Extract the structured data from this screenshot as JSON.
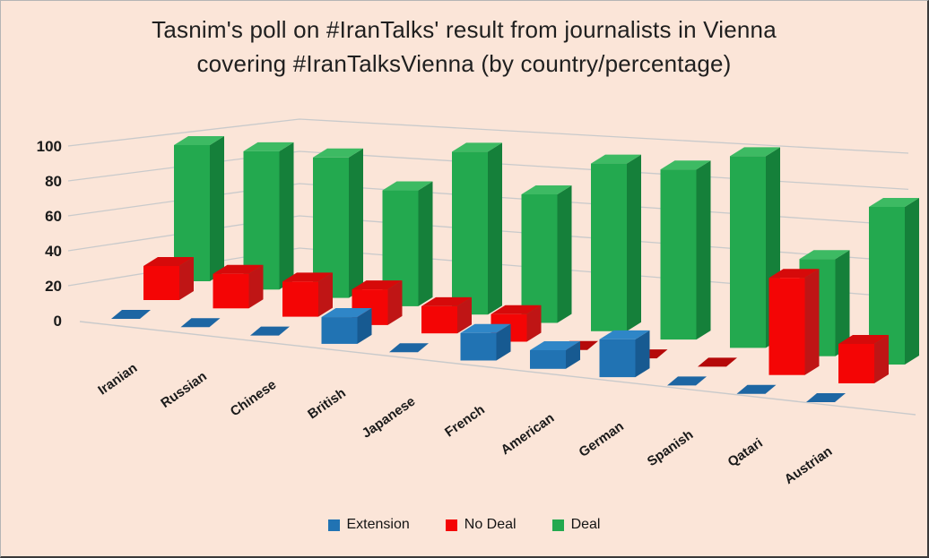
{
  "window": {
    "background": "#FBE5D8",
    "frame_border": "#3a3a3a"
  },
  "title": {
    "line1": "Tasnim's poll on #IranTalks' result from journalists in Vienna",
    "line2": "covering #IranTalksVienna (by country/percentage)"
  },
  "chart_data": {
    "type": "bar",
    "variant": "3d-clustered-column",
    "title": "Tasnim's poll on #IranTalks' result from journalists in Vienna covering #IranTalksVienna (by country/percentage)",
    "categories": [
      "Iranian",
      "Russian",
      "Chinese",
      "British",
      "Japanese",
      "French",
      "American",
      "German",
      "Spanish",
      "Qatari",
      "Austrian"
    ],
    "series": [
      {
        "name": "Extension",
        "values": [
          0,
          0,
          0,
          15,
          0,
          15,
          10,
          20,
          0,
          0,
          0
        ],
        "color": "#2173B3",
        "color_top": "#2F86C7",
        "color_side": "#175A91",
        "color_flat": "#1D66A3"
      },
      {
        "name": "No Deal",
        "values": [
          20,
          20,
          20,
          20,
          15,
          15,
          0,
          0,
          0,
          50,
          20
        ],
        "color": "#F40505",
        "color_top": "#D60A0A",
        "color_side": "#BF1515",
        "color_flat": "#B50909"
      },
      {
        "name": "Deal",
        "values": [
          80,
          80,
          80,
          65,
          90,
          70,
          90,
          90,
          100,
          50,
          80
        ],
        "color": "#23A94F",
        "color_top": "#3DBA63",
        "color_side": "#15803A",
        "color_flat": "#1B8A43"
      }
    ],
    "xlabel": "",
    "ylabel": "",
    "ylim": [
      0,
      100
    ],
    "yticks": [
      0,
      20,
      40,
      60,
      80,
      100
    ],
    "grid": true,
    "grid_color": "#C9CACB",
    "axis_text_color": "#1A1A1A",
    "legend_position": "bottom"
  }
}
